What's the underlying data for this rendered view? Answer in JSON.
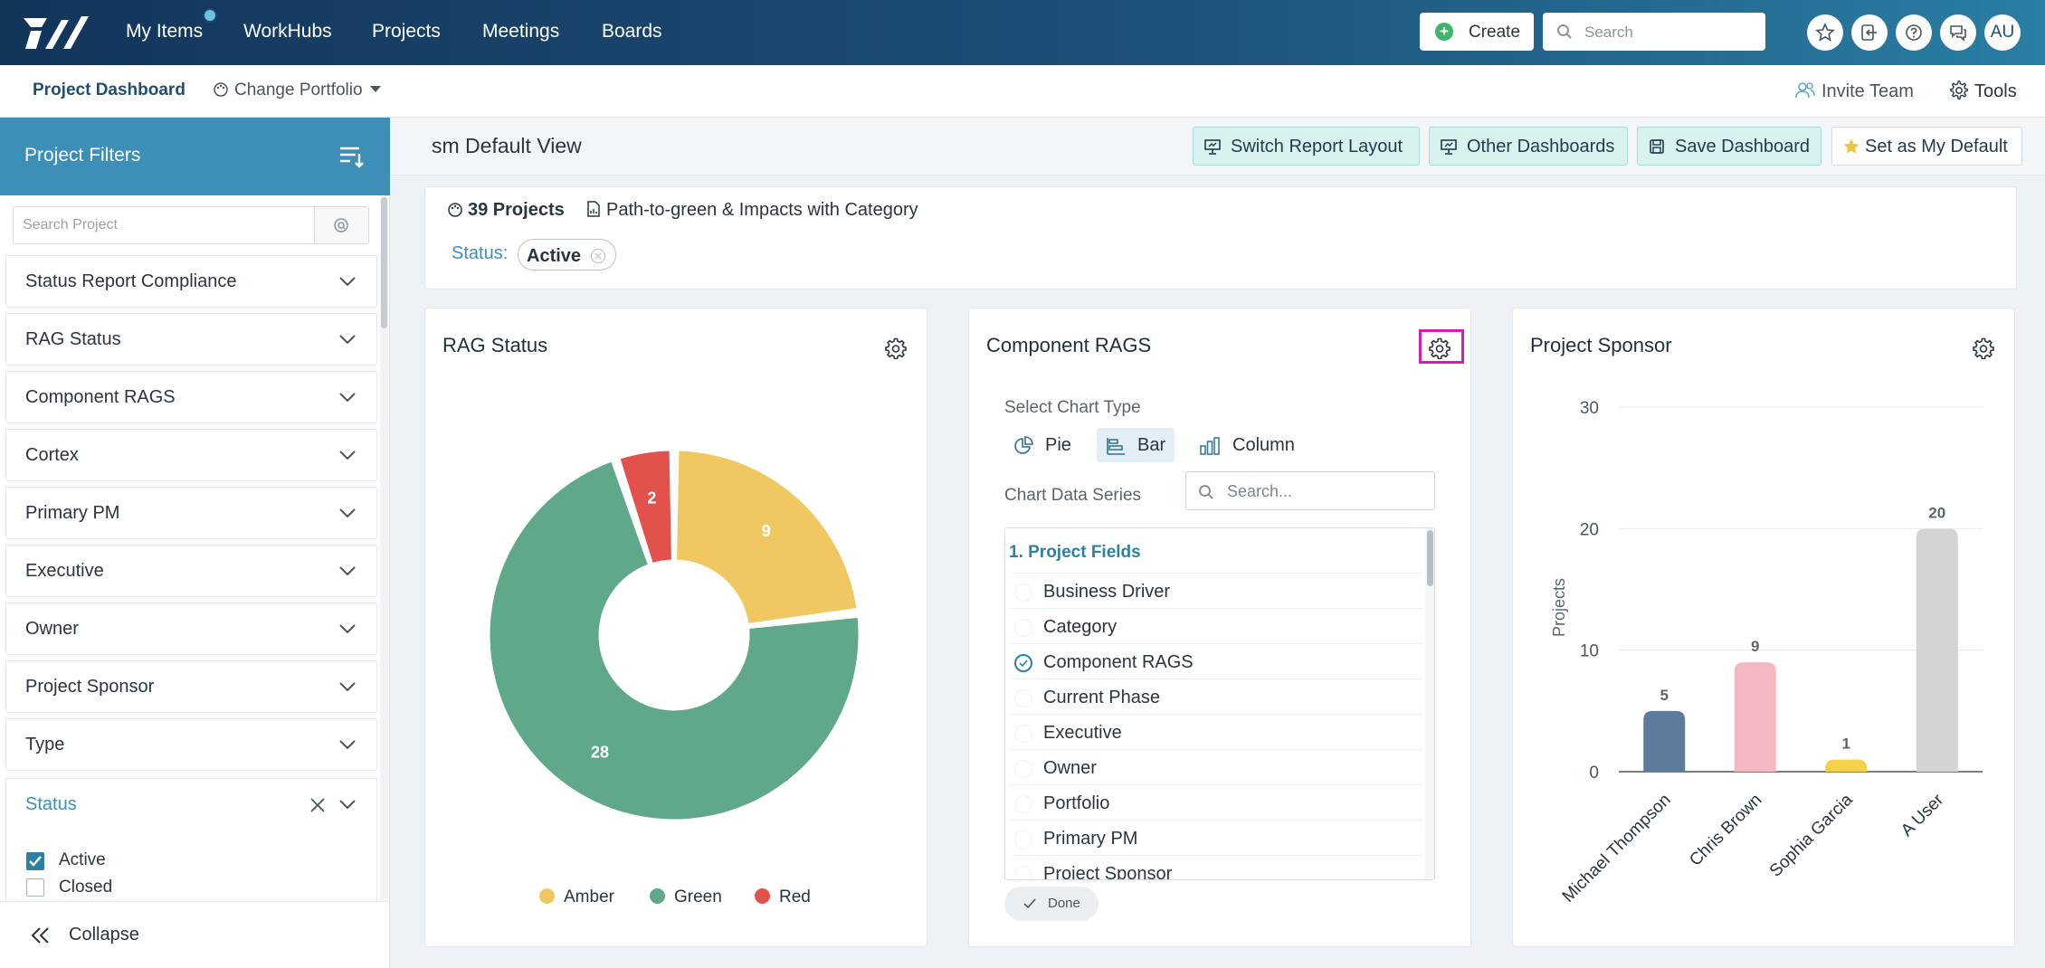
{
  "nav": {
    "items": [
      "My Items",
      "WorkHubs",
      "Projects",
      "Meetings",
      "Boards"
    ],
    "create_label": "Create",
    "search_placeholder": "Search",
    "avatar_initials": "AU"
  },
  "subheader": {
    "title": "Project Dashboard",
    "change_portfolio": "Change Portfolio",
    "invite": "Invite Team",
    "tools": "Tools"
  },
  "sidebar": {
    "title": "Project Filters",
    "search_placeholder": "Search Project",
    "filters": [
      "Status Report Compliance",
      "RAG Status",
      "Component RAGS",
      "Cortex",
      "Primary PM",
      "Executive",
      "Owner",
      "Project Sponsor",
      "Type"
    ],
    "status_filter": {
      "label": "Status",
      "options": [
        {
          "label": "Active",
          "checked": true
        },
        {
          "label": "Closed",
          "checked": false
        }
      ]
    },
    "collapse": "Collapse"
  },
  "view": {
    "title": "sm Default View",
    "buttons": [
      "Switch Report Layout",
      "Other Dashboards",
      "Save Dashboard",
      "Set as My Default"
    ]
  },
  "summary": {
    "projects": "39 Projects",
    "report": "Path-to-green & Impacts with Category",
    "status_label": "Status:",
    "status_value": "Active"
  },
  "cards": {
    "rag_title": "RAG Status",
    "component_title": "Component RAGS",
    "sponsor_title": "Project Sponsor"
  },
  "component_panel": {
    "chart_type_label": "Select Chart Type",
    "chart_types": [
      "Pie",
      "Bar",
      "Column"
    ],
    "selected_type": "Bar",
    "series_label": "Chart Data Series",
    "series_search_placeholder": "Search...",
    "group_label": "1. Project Fields",
    "fields": [
      "Business Driver",
      "Category",
      "Component RAGS",
      "Current Phase",
      "Executive",
      "Owner",
      "Portfolio",
      "Primary PM",
      "Project Sponsor"
    ],
    "selected_field": "Component RAGS",
    "done": "Done"
  },
  "colors": {
    "amber": "#f0c862",
    "green": "#5fa98a",
    "red": "#e3514c",
    "accent": "#3e8fb8"
  },
  "chart_data": [
    {
      "type": "pie",
      "title": "RAG Status",
      "donut": true,
      "series": [
        {
          "values": [
            9,
            28,
            2
          ]
        }
      ],
      "categories": [
        "Amber",
        "Green",
        "Red"
      ],
      "data_labels": [
        "9",
        "28",
        "2"
      ],
      "colors": [
        "#f0c862",
        "#5fa98a",
        "#e3514c"
      ],
      "legend": "bottom"
    },
    {
      "type": "bar",
      "title": "Project Sponsor",
      "categories": [
        "Michael Thompson",
        "Chris Brown",
        "Sophia Garcia",
        "A User"
      ],
      "values": [
        5,
        9,
        1,
        20
      ],
      "colors": [
        "#5e7b9c",
        "#f4b8c2",
        "#f7d04a",
        "#d4d4d4"
      ],
      "ylabel": "Projects",
      "xlabel": "",
      "ylim": [
        0,
        30
      ],
      "yticks": [
        0,
        10,
        20,
        30
      ],
      "grid": true
    }
  ]
}
